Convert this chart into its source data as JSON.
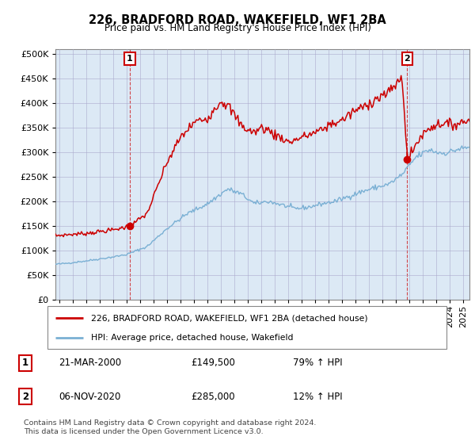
{
  "title": "226, BRADFORD ROAD, WAKEFIELD, WF1 2BA",
  "subtitle": "Price paid vs. HM Land Registry's House Price Index (HPI)",
  "ylabel_ticks": [
    0,
    50000,
    100000,
    150000,
    200000,
    250000,
    300000,
    350000,
    400000,
    450000,
    500000
  ],
  "ylim": [
    0,
    510000
  ],
  "xlim_start": 1994.7,
  "xlim_end": 2025.5,
  "sale1_x": 2000.22,
  "sale1_y": 149500,
  "sale2_x": 2020.85,
  "sale2_y": 285000,
  "sale1_label": "1",
  "sale2_label": "2",
  "red_color": "#cc0000",
  "blue_color": "#7ab0d4",
  "bg_fill": "#dce9f5",
  "legend_entry1": "226, BRADFORD ROAD, WAKEFIELD, WF1 2BA (detached house)",
  "legend_entry2": "HPI: Average price, detached house, Wakefield",
  "table_row1_num": "1",
  "table_row1_date": "21-MAR-2000",
  "table_row1_price": "£149,500",
  "table_row1_hpi": "79% ↑ HPI",
  "table_row2_num": "2",
  "table_row2_date": "06-NOV-2020",
  "table_row2_price": "£285,000",
  "table_row2_hpi": "12% ↑ HPI",
  "footer": "Contains HM Land Registry data © Crown copyright and database right 2024.\nThis data is licensed under the Open Government Licence v3.0.",
  "background_color": "#ffffff",
  "grid_color": "#aaaacc",
  "hpi_anchors": [
    [
      1994.7,
      72000
    ],
    [
      1995.5,
      74000
    ],
    [
      1997.0,
      79000
    ],
    [
      1999.0,
      87000
    ],
    [
      2000.0,
      92000
    ],
    [
      2001.5,
      108000
    ],
    [
      2003.0,
      145000
    ],
    [
      2004.5,
      175000
    ],
    [
      2006.0,
      195000
    ],
    [
      2007.5,
      225000
    ],
    [
      2008.5,
      215000
    ],
    [
      2009.5,
      195000
    ],
    [
      2010.5,
      200000
    ],
    [
      2011.5,
      193000
    ],
    [
      2012.5,
      185000
    ],
    [
      2013.5,
      188000
    ],
    [
      2014.5,
      195000
    ],
    [
      2015.5,
      200000
    ],
    [
      2016.5,
      210000
    ],
    [
      2017.5,
      220000
    ],
    [
      2018.5,
      228000
    ],
    [
      2019.5,
      235000
    ],
    [
      2020.5,
      255000
    ],
    [
      2021.5,
      290000
    ],
    [
      2022.5,
      305000
    ],
    [
      2023.0,
      300000
    ],
    [
      2023.5,
      298000
    ],
    [
      2024.0,
      300000
    ],
    [
      2024.5,
      305000
    ],
    [
      2025.5,
      310000
    ]
  ],
  "red_anchors": [
    [
      1994.7,
      130000
    ],
    [
      1995.5,
      132000
    ],
    [
      1997.0,
      135000
    ],
    [
      1999.0,
      142000
    ],
    [
      2000.22,
      149500
    ],
    [
      2001.5,
      175000
    ],
    [
      2003.0,
      280000
    ],
    [
      2004.0,
      330000
    ],
    [
      2005.0,
      360000
    ],
    [
      2006.0,
      370000
    ],
    [
      2007.0,
      405000
    ],
    [
      2007.5,
      395000
    ],
    [
      2008.0,
      375000
    ],
    [
      2008.5,
      355000
    ],
    [
      2009.0,
      345000
    ],
    [
      2009.5,
      340000
    ],
    [
      2010.0,
      350000
    ],
    [
      2010.5,
      345000
    ],
    [
      2011.0,
      335000
    ],
    [
      2011.5,
      330000
    ],
    [
      2012.0,
      320000
    ],
    [
      2012.5,
      325000
    ],
    [
      2013.0,
      330000
    ],
    [
      2013.5,
      335000
    ],
    [
      2014.0,
      340000
    ],
    [
      2014.5,
      345000
    ],
    [
      2015.0,
      355000
    ],
    [
      2015.5,
      360000
    ],
    [
      2016.0,
      365000
    ],
    [
      2016.5,
      375000
    ],
    [
      2017.0,
      385000
    ],
    [
      2017.5,
      390000
    ],
    [
      2018.0,
      400000
    ],
    [
      2018.5,
      408000
    ],
    [
      2019.0,
      415000
    ],
    [
      2019.5,
      420000
    ],
    [
      2020.0,
      440000
    ],
    [
      2020.5,
      448000
    ],
    [
      2020.85,
      285000
    ],
    [
      2021.2,
      300000
    ],
    [
      2021.8,
      330000
    ],
    [
      2022.5,
      350000
    ],
    [
      2023.0,
      355000
    ],
    [
      2023.5,
      360000
    ],
    [
      2024.0,
      355000
    ],
    [
      2024.5,
      358000
    ],
    [
      2025.5,
      365000
    ]
  ]
}
